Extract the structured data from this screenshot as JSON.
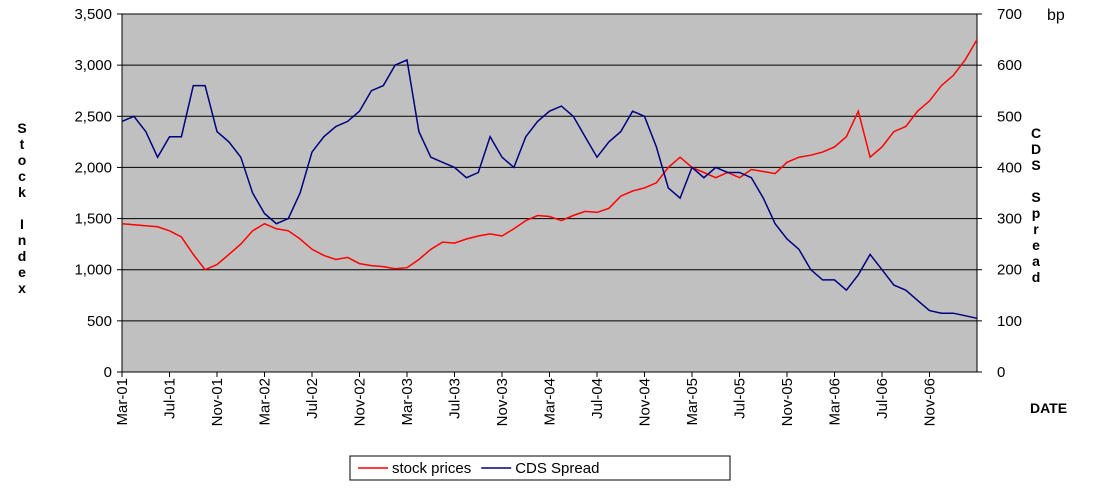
{
  "chart_data": {
    "type": "line",
    "y_label": "Stock Index",
    "y2_label": "CDS Spread",
    "y2_unit": "bp",
    "x_label": "DATE",
    "categories": [
      "Mar-01",
      null,
      null,
      null,
      "Jul-01",
      null,
      null,
      null,
      "Nov-01",
      null,
      null,
      null,
      "Mar-02",
      null,
      null,
      null,
      "Jul-02",
      null,
      null,
      null,
      "Nov-02",
      null,
      null,
      null,
      "Mar-03",
      null,
      null,
      null,
      "Jul-03",
      null,
      null,
      null,
      "Nov-03",
      null,
      null,
      null,
      "Mar-04",
      null,
      null,
      null,
      "Jul-04",
      null,
      null,
      null,
      "Nov-04",
      null,
      null,
      null,
      "Mar-05",
      null,
      null,
      null,
      "Jul-05",
      null,
      null,
      null,
      "Nov-05",
      null,
      null,
      null,
      "Mar-06",
      null,
      null,
      null,
      "Jul-06",
      null,
      null,
      null,
      "Nov-06",
      null,
      null,
      null,
      null
    ],
    "series": [
      {
        "name": "stock prices",
        "color": "#ff0000",
        "axis": "y",
        "values": [
          1450,
          1440,
          1430,
          1420,
          1380,
          1320,
          1150,
          1000,
          1050,
          1150,
          1250,
          1380,
          1450,
          1400,
          1380,
          1300,
          1200,
          1140,
          1100,
          1120,
          1060,
          1040,
          1030,
          1010,
          1020,
          1100,
          1200,
          1270,
          1260,
          1300,
          1330,
          1350,
          1330,
          1400,
          1480,
          1530,
          1520,
          1480,
          1530,
          1570,
          1560,
          1600,
          1720,
          1770,
          1800,
          1850,
          2000,
          2100,
          2000,
          1950,
          1900,
          1950,
          1900,
          1980,
          1960,
          1940,
          2050,
          2100,
          2120,
          2150,
          2200,
          2300,
          2550,
          2100,
          2200,
          2350,
          2400,
          2550,
          2650,
          2800,
          2900,
          3050,
          3250
        ]
      },
      {
        "name": "CDS Spread",
        "color": "#000080",
        "axis": "y2",
        "values": [
          490,
          500,
          470,
          420,
          460,
          460,
          560,
          560,
          470,
          450,
          420,
          350,
          310,
          290,
          300,
          350,
          430,
          460,
          480,
          490,
          510,
          550,
          560,
          600,
          610,
          470,
          420,
          410,
          400,
          380,
          390,
          460,
          420,
          400,
          460,
          490,
          510,
          520,
          500,
          460,
          420,
          450,
          470,
          510,
          500,
          440,
          360,
          340,
          400,
          380,
          400,
          390,
          390,
          380,
          340,
          290,
          260,
          240,
          200,
          180,
          180,
          160,
          190,
          230,
          200,
          170,
          160,
          140,
          120,
          115,
          115,
          110,
          105
        ]
      }
    ],
    "ylim": [
      0,
      3500
    ],
    "yticks": [
      0,
      500,
      {
        "value": 1000,
        "label": "1,000"
      },
      {
        "value": 1500,
        "label": "1,500"
      },
      {
        "value": 2000,
        "label": "2,000"
      },
      {
        "value": 2500,
        "label": "2,500"
      },
      {
        "value": 3000,
        "label": "3,000"
      },
      {
        "value": 3500,
        "label": "3,500"
      }
    ],
    "y2lim": [
      0,
      700
    ],
    "y2ticks": [
      0,
      100,
      200,
      300,
      400,
      500,
      600,
      700
    ],
    "grid": true,
    "plot_background": "#c0c0c0",
    "legend": "bottom"
  }
}
